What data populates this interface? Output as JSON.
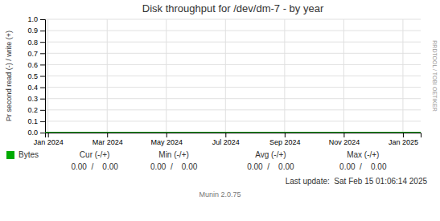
{
  "chart_data": {
    "type": "line",
    "title": "Disk throughput for /dev/dm-7  -  by year",
    "y_label": "Pr second read (-) / write (+)",
    "x": [
      -0.1,
      12.6
    ],
    "series": [
      {
        "name": "Bytes",
        "color": "#00aa00",
        "values": [
          0,
          0
        ]
      }
    ],
    "xlim": [
      -0.1,
      12.6
    ],
    "xticks": [
      {
        "value": 0,
        "label": "Jan 2024"
      },
      {
        "value": 2,
        "label": "Mar 2024"
      },
      {
        "value": 4,
        "label": "May 2024"
      },
      {
        "value": 6,
        "label": "Jul 2024"
      },
      {
        "value": 8,
        "label": "Sep 2024"
      },
      {
        "value": 10,
        "label": "Nov 2024"
      },
      {
        "value": 12,
        "label": "Jan 2025"
      }
    ],
    "ylim": [
      0.0,
      1.0
    ],
    "yticks": [
      {
        "value": 0,
        "label": "0.0"
      },
      0.1,
      0.2,
      0.3,
      0.4,
      0.5,
      0.6,
      0.7,
      0.8,
      0.9,
      {
        "value": 1,
        "label": "1.0"
      }
    ],
    "grid": true,
    "legend": "bottom",
    "annotations": [
      "Cur (-/+)",
      "Min (-/+)",
      "Avg (-/+)",
      "Max (-/+)",
      "0.00  /    0.00",
      "0.00  /    0.00",
      "0.00  /    0.00",
      "0.00  /    0.00",
      "Last update:  Sat Feb 15 01:06:14 2025",
      "Munin 2.0.75",
      "RRDTOOL / TOBI OETIKER"
    ]
  }
}
